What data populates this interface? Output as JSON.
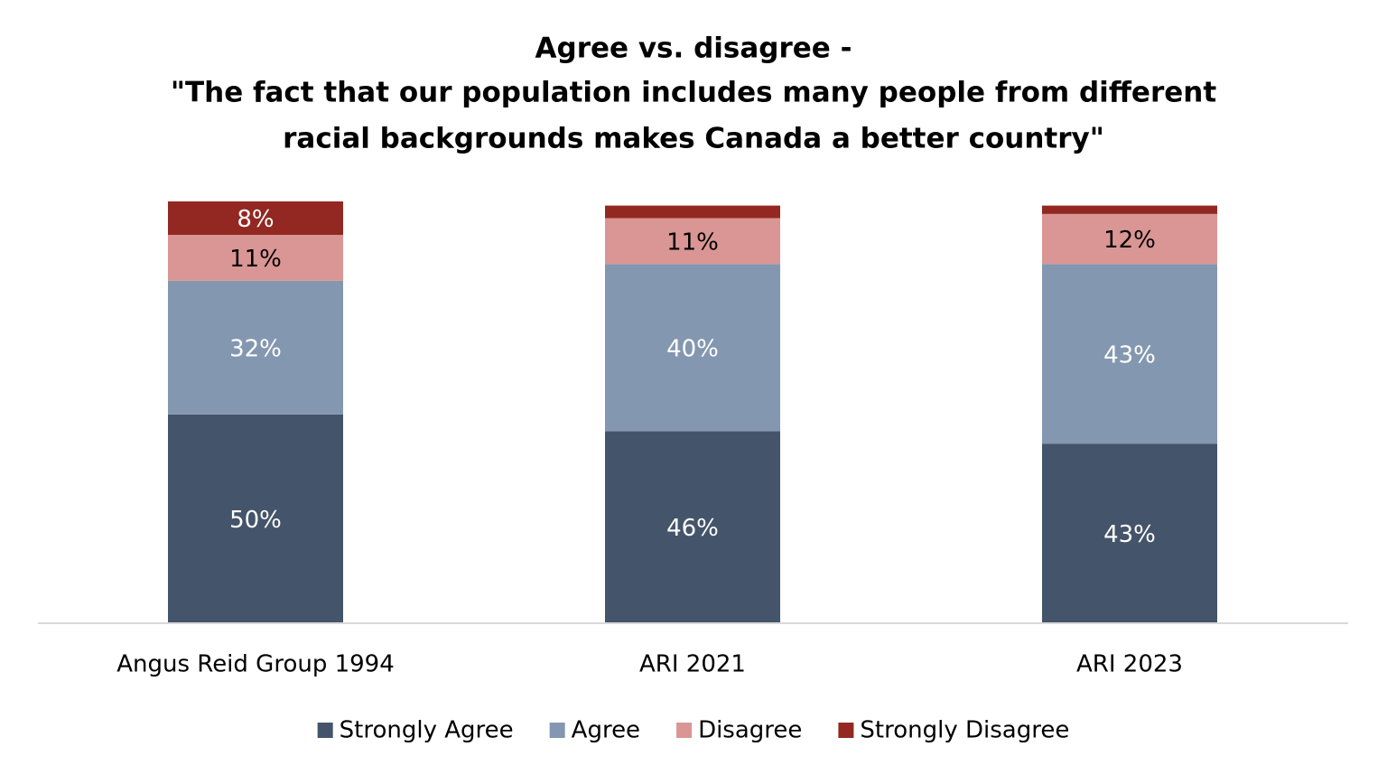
{
  "chart_data": {
    "type": "stacked-bar",
    "title": [
      "Agree vs. disagree -",
      "\"The fact that our population includes many people from different",
      "racial backgrounds makes Canada a better country\""
    ],
    "categories": [
      "Angus Reid Group 1994",
      "ARI 2021",
      "ARI 2023"
    ],
    "series": [
      {
        "name": "Strongly Agree",
        "color": "#44546a",
        "values": [
          50,
          46,
          43
        ],
        "value_labels": [
          "50%",
          "46%",
          "43%"
        ],
        "label_color": "#ffffff"
      },
      {
        "name": "Agree",
        "color": "#8497b0",
        "values": [
          32,
          40,
          43
        ],
        "value_labels": [
          "32%",
          "40%",
          "43%"
        ],
        "label_color": "#ffffff"
      },
      {
        "name": "Disagree",
        "color": "#d99694",
        "values": [
          11,
          11,
          12
        ],
        "value_labels": [
          "11%",
          "11%",
          "12%"
        ],
        "label_color": "#000000"
      },
      {
        "name": "Strongly Disagree",
        "color": "#922821",
        "values": [
          8,
          3,
          2
        ],
        "value_labels": [
          "8%",
          null,
          null
        ],
        "label_color": "#ffffff"
      }
    ]
  }
}
